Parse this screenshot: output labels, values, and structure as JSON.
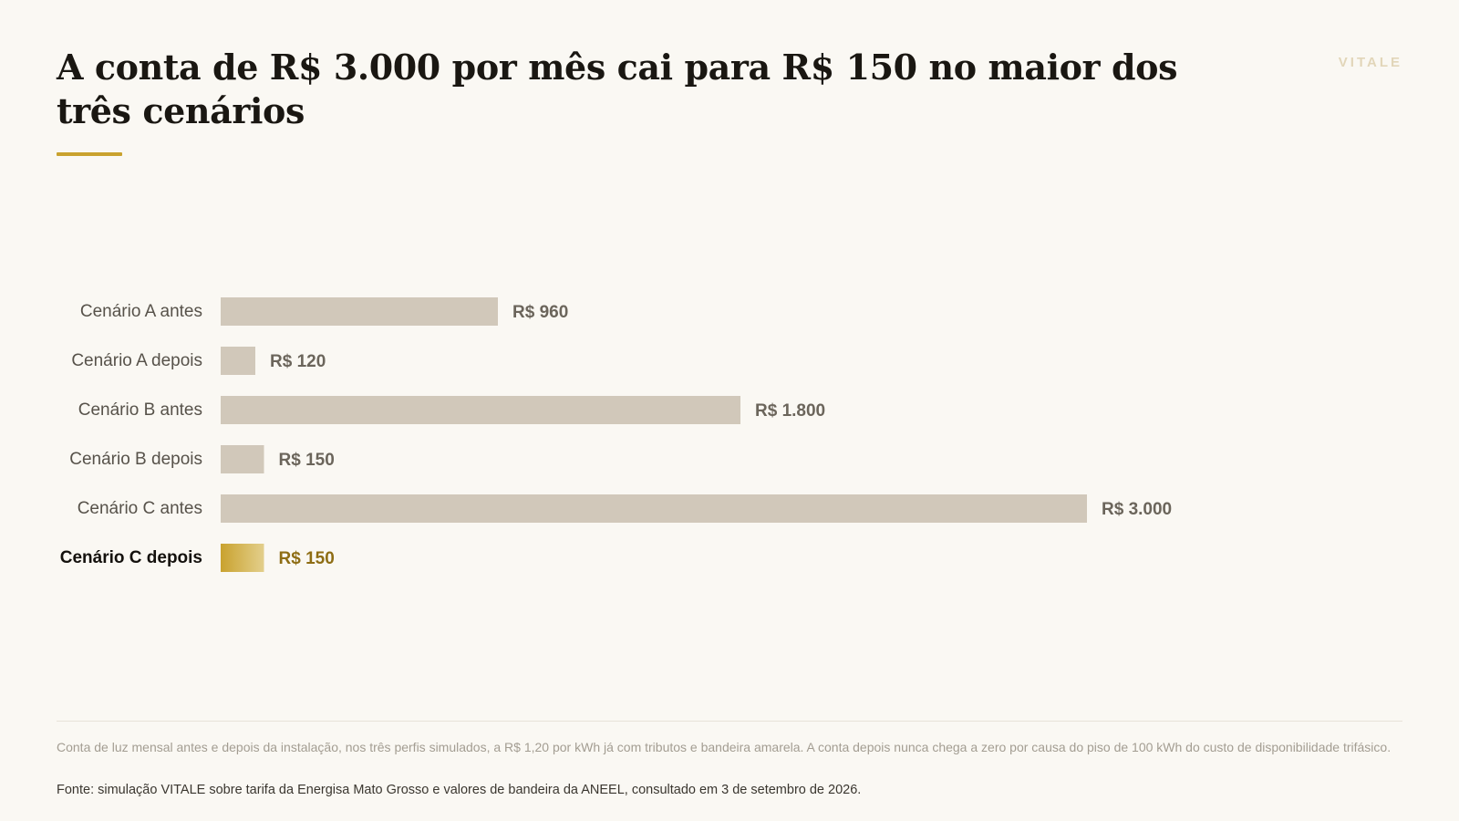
{
  "header": {
    "title": "A conta de R$ 3.000 por mês cai para R$ 150 no maior dos três cenários",
    "brand": "VITALE"
  },
  "chart_data": {
    "type": "bar",
    "orientation": "horizontal",
    "title": "A conta de R$ 3.000 por mês cai para R$ 150 no maior dos três cenários",
    "categories": [
      "Cenário A antes",
      "Cenário A depois",
      "Cenário B antes",
      "Cenário B depois",
      "Cenário C antes",
      "Cenário C depois"
    ],
    "values": [
      960,
      120,
      1800,
      150,
      3000,
      150
    ],
    "value_labels": [
      "R$ 960",
      "R$ 120",
      "R$ 1.800",
      "R$ 150",
      "R$ 3.000",
      "R$ 150"
    ],
    "highlight_index": 5,
    "xlim": [
      0,
      3000
    ],
    "grid": false,
    "legend": "none",
    "colors": {
      "bar": "#d1c8ba",
      "highlight_start": "#c9a22e",
      "highlight_end": "#e3cf8c"
    }
  },
  "footer": {
    "note": "Conta de luz mensal antes e depois da instalação, nos três perfis simulados, a R$ 1,20 por kWh já com tributos e bandeira amarela. A conta depois nunca chega a zero por causa do piso de 100 kWh do custo de disponibilidade trifásico.",
    "source": "Fonte: simulação VITALE sobre tarifa da Energisa Mato Grosso e valores de bandeira da ANEEL, consultado em 3 de setembro de 2026."
  }
}
